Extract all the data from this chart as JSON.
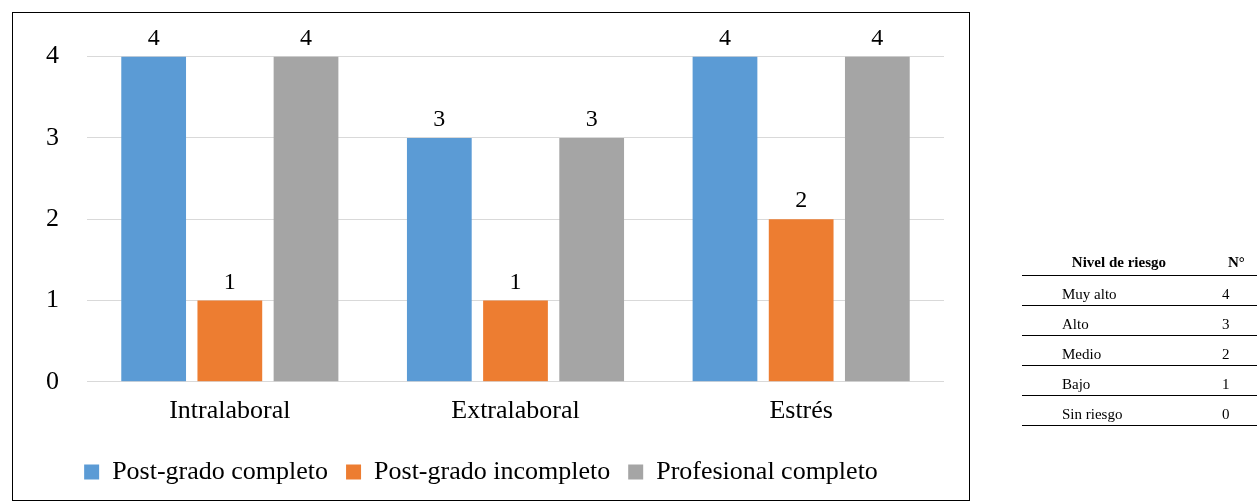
{
  "chart_data": [
    {
      "type": "bar",
      "categories": [
        "Intralaboral",
        "Extralaboral",
        "Estrés"
      ],
      "series": [
        {
          "name": "Post-grado completo",
          "color": "#5b9bd5",
          "values": [
            4,
            3,
            4
          ]
        },
        {
          "name": "Post-grado incompleto",
          "color": "#ed7d31",
          "values": [
            1,
            1,
            2
          ]
        },
        {
          "name": "Profesional completo",
          "color": "#a5a5a5",
          "values": [
            4,
            3,
            4
          ]
        }
      ],
      "ylim": [
        0,
        4
      ],
      "yticks": [
        0,
        1,
        2,
        3,
        4
      ],
      "grid": "y",
      "legend": "bottom",
      "data_labels": true
    },
    {
      "type": "other",
      "annotations": [
        "Nivel de riesgo",
        "N°",
        "Muy alto\t4",
        "Alto\t3",
        "Medio\t2",
        "Bajo\t1",
        "Sin riesgo\t0"
      ]
    }
  ]
}
